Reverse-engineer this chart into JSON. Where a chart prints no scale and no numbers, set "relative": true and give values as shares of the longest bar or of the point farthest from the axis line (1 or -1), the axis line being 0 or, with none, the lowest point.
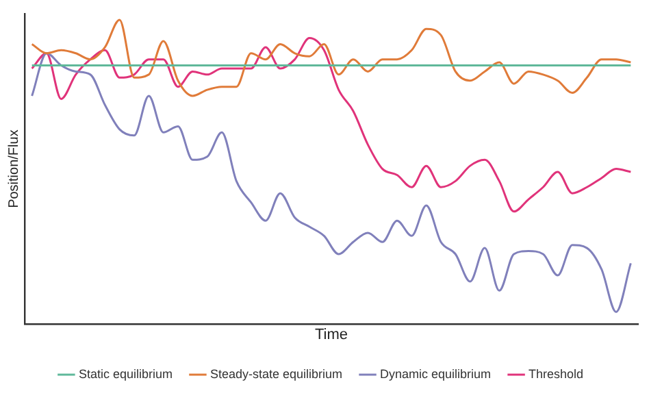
{
  "chart_data": {
    "type": "line",
    "relative": true,
    "xlabel": "Time",
    "ylabel": "Position/Flux",
    "legend": "bottom",
    "grid": false,
    "marker": "none",
    "line_style": "solid",
    "categories": [
      null,
      null,
      null,
      null,
      null,
      null,
      null,
      null,
      null,
      null,
      null,
      null,
      null,
      null,
      null,
      null,
      null,
      null,
      null,
      null,
      null,
      null,
      null,
      null,
      null,
      null,
      null,
      null,
      null,
      null,
      null,
      null,
      null,
      null,
      null,
      null,
      null,
      null,
      null,
      null,
      null,
      null
    ],
    "series": [
      {
        "name": "Static equilibrium",
        "color": "#5fb89a",
        "values": [
          0.85,
          0.85,
          0.85,
          0.85,
          0.85,
          0.85,
          0.85,
          0.85,
          0.85,
          0.85,
          0.85,
          0.85,
          0.85,
          0.85,
          0.85,
          0.85,
          0.85,
          0.85,
          0.85,
          0.85,
          0.85,
          0.85,
          0.85,
          0.85,
          0.85,
          0.85,
          0.85,
          0.85,
          0.85,
          0.85,
          0.85,
          0.85,
          0.85,
          0.85,
          0.85,
          0.85,
          0.85,
          0.85,
          0.85,
          0.85,
          0.85,
          0.85
        ]
      },
      {
        "name": "Steady-state equilibrium",
        "color": "#e07b39",
        "values": [
          0.92,
          0.89,
          0.9,
          0.89,
          0.87,
          0.91,
          1,
          0.81,
          0.82,
          0.93,
          0.8,
          0.75,
          0.77,
          0.78,
          0.78,
          0.89,
          0.87,
          0.92,
          0.89,
          0.88,
          0.92,
          0.82,
          0.87,
          0.83,
          0.87,
          0.87,
          0.9,
          0.97,
          0.95,
          0.83,
          0.8,
          0.83,
          0.86,
          0.79,
          0.83,
          0.82,
          0.8,
          0.76,
          0.81,
          0.87,
          0.87,
          0.86
        ]
      },
      {
        "name": "Dynamic equilibrium",
        "color": "#8080bb",
        "values": [
          0.75,
          0.89,
          0.85,
          0.83,
          0.82,
          0.72,
          0.64,
          0.62,
          0.75,
          0.63,
          0.65,
          0.54,
          0.55,
          0.63,
          0.47,
          0.4,
          0.34,
          0.43,
          0.35,
          0.32,
          0.29,
          0.23,
          0.27,
          0.3,
          0.27,
          0.34,
          0.29,
          0.39,
          0.27,
          0.23,
          0.14,
          0.25,
          0.11,
          0.23,
          0.24,
          0.23,
          0.16,
          0.26,
          0.25,
          0.18,
          0.04,
          0.2
        ]
      },
      {
        "name": "Threshold",
        "color": "#e0337a",
        "values": [
          0.84,
          0.89,
          0.74,
          0.82,
          0.87,
          0.9,
          0.81,
          0.82,
          0.87,
          0.87,
          0.78,
          0.83,
          0.82,
          0.84,
          0.84,
          0.84,
          0.91,
          0.84,
          0.87,
          0.94,
          0.9,
          0.77,
          0.7,
          0.59,
          0.51,
          0.49,
          0.45,
          0.52,
          0.45,
          0.47,
          0.52,
          0.54,
          0.47,
          0.37,
          0.41,
          0.45,
          0.5,
          0.43,
          0.45,
          0.48,
          0.51,
          0.5
        ]
      }
    ]
  }
}
